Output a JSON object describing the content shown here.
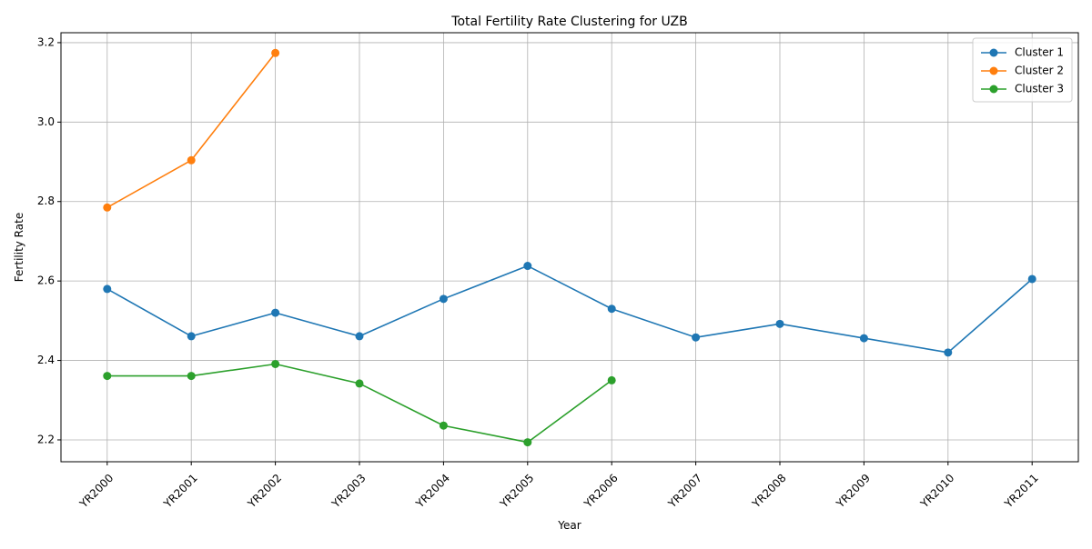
{
  "chart_data": {
    "type": "line",
    "title": "Total Fertility Rate Clustering for UZB",
    "xlabel": "Year",
    "ylabel": "Fertility Rate",
    "categories": [
      "YR2000",
      "YR2001",
      "YR2002",
      "YR2003",
      "YR2004",
      "YR2005",
      "YR2006",
      "YR2007",
      "YR2008",
      "YR2009",
      "YR2010",
      "YR2011"
    ],
    "ylim": [
      2.145,
      3.225
    ],
    "yticks": [
      "2.2",
      "2.4",
      "2.6",
      "2.8",
      "3.0",
      "3.2"
    ],
    "grid": true,
    "legend_position": "top-right",
    "series": [
      {
        "name": "Cluster 1",
        "color": "#1f77b4",
        "values": [
          2.58,
          2.461,
          2.52,
          2.461,
          2.555,
          2.638,
          2.53,
          2.458,
          2.492,
          2.456,
          2.42,
          2.605
        ]
      },
      {
        "name": "Cluster 2",
        "color": "#ff7f0e",
        "values": [
          2.785,
          2.904,
          3.174,
          null,
          null,
          null,
          null,
          null,
          null,
          null,
          null,
          null
        ]
      },
      {
        "name": "Cluster 3",
        "color": "#2ca02c",
        "values": [
          2.361,
          2.361,
          2.391,
          2.342,
          2.236,
          2.194,
          2.35,
          null,
          null,
          null,
          null,
          null
        ]
      }
    ]
  }
}
